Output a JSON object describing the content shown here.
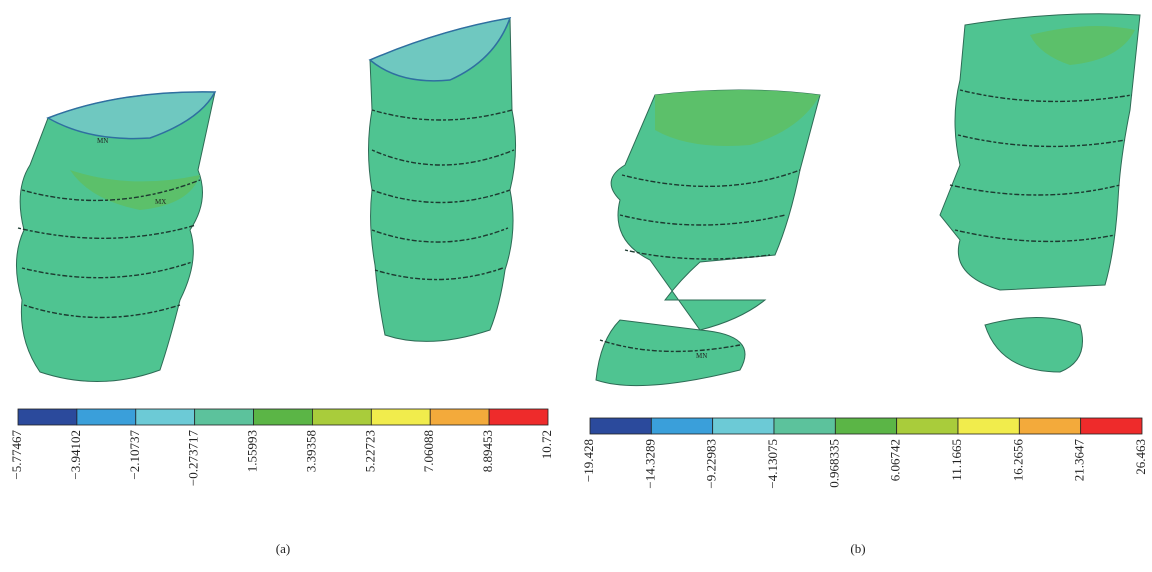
{
  "panels": [
    {
      "caption": "(a)",
      "markers": [
        "MN",
        "MX"
      ],
      "ticks": [
        "−5.77467",
        "−3.94102",
        "−2.10737",
        "−0.273717",
        "1.55993",
        "3.39358",
        "5.22723",
        "7.06088",
        "8.89453",
        "10.72"
      ]
    },
    {
      "caption": "(b)",
      "markers": [
        "MN"
      ],
      "ticks": [
        "−19.428",
        "−14.3289",
        "−9.22983",
        "−4.13075",
        "0.968335",
        "6.06742",
        "11.1665",
        "16.2656",
        "21.3647",
        "26.463"
      ]
    }
  ],
  "scale_colors": [
    "#2b4a9c",
    "#3a9fda",
    "#6ccad6",
    "#5cc29c",
    "#5bb546",
    "#a9cc3b",
    "#f1ec4c",
    "#f3aa3b",
    "#ee2b2b"
  ]
}
